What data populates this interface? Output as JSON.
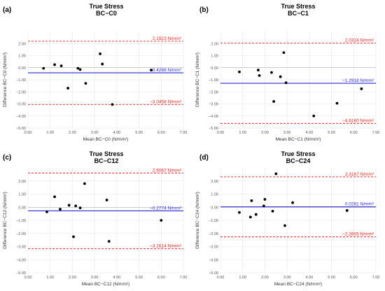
{
  "chart_data": [
    {
      "type": "scatter",
      "panel": "(a)",
      "title": "True Stress",
      "subtitle": "BC−C0",
      "xlabel": "Mean BC−C0 (N/mm²)",
      "ylabel": "Difference BC−C0 (N/mm²)",
      "xlim": [
        0,
        7
      ],
      "ylim": [
        -5,
        3
      ],
      "xticks": [
        "0.00",
        "1.00",
        "2.00",
        "3.00",
        "4.00",
        "5.00",
        "6.00",
        "7.00"
      ],
      "yticks": [
        "−5.00",
        "−4.00",
        "−3.00",
        "−2.00",
        "−1.00",
        "0.00",
        "1.00",
        "2.00"
      ],
      "points": [
        [
          0.7,
          -0.05
        ],
        [
          1.2,
          0.25
        ],
        [
          1.5,
          0.15
        ],
        [
          1.8,
          -1.7
        ],
        [
          2.25,
          -0.05
        ],
        [
          2.35,
          -0.15
        ],
        [
          2.6,
          -1.3
        ],
        [
          3.25,
          1.15
        ],
        [
          3.35,
          0.3
        ],
        [
          3.8,
          -3.05
        ],
        [
          5.55,
          -0.2
        ]
      ],
      "lines": [
        {
          "value": 2.1923,
          "label": "2.1923 N/mm²",
          "style": "dashed",
          "color": "#e8231f"
        },
        {
          "value": -0.4268,
          "label": "−0.4268 N/mm²",
          "style": "solid",
          "color": "#2a2ad8"
        },
        {
          "value": -3.0458,
          "label": "−3.0458 N/mm²",
          "style": "dashed",
          "color": "#e8231f"
        }
      ],
      "grid": true
    },
    {
      "type": "scatter",
      "panel": "(b)",
      "title": "True Stress",
      "subtitle": "BC−C1",
      "xlabel": "Mean BC−C1 (N/mm²)",
      "ylabel": "Difference BC−C1 (N/mm²)",
      "xlim": [
        0,
        7
      ],
      "ylim": [
        -5,
        3
      ],
      "xticks": [
        "0.00",
        "1.00",
        "2.00",
        "3.00",
        "4.00",
        "5.00",
        "6.00",
        "7.00"
      ],
      "yticks": [
        "−5.00",
        "−4.00",
        "−3.00",
        "−2.00",
        "−1.00",
        "0.00",
        "1.00",
        "2.00"
      ],
      "points": [
        [
          0.85,
          -0.35
        ],
        [
          1.7,
          -0.2
        ],
        [
          1.75,
          -0.65
        ],
        [
          2.3,
          -0.4
        ],
        [
          2.4,
          -2.8
        ],
        [
          2.7,
          -0.75
        ],
        [
          2.85,
          1.25
        ],
        [
          2.95,
          -1.25
        ],
        [
          4.2,
          -4.0
        ],
        [
          5.25,
          -2.95
        ],
        [
          6.35,
          -1.75
        ]
      ],
      "lines": [
        {
          "value": 2.0324,
          "label": "2.0324 N/mm²",
          "style": "dashed",
          "color": "#e8231f"
        },
        {
          "value": -1.2918,
          "label": "−1.2918 N/mm²",
          "style": "solid",
          "color": "#2a2ad8"
        },
        {
          "value": -4.616,
          "label": "−4.6160 N/mm²",
          "style": "dashed",
          "color": "#e8231f"
        }
      ],
      "grid": true
    },
    {
      "type": "scatter",
      "panel": "(c)",
      "title": "True Stress",
      "subtitle": "BC−C12",
      "xlabel": "Mean BC−C12 (N/mm²)",
      "ylabel": "Difference BC−C12 (N/mm²)",
      "xlim": [
        0,
        7
      ],
      "ylim": [
        -5,
        3
      ],
      "xticks": [
        "0.00",
        "1.00",
        "2.00",
        "3.00",
        "4.00",
        "5.00",
        "6.00",
        "7.00"
      ],
      "yticks": [
        "−5.00",
        "−4.00",
        "−3.00",
        "−2.00",
        "−1.00",
        "0.00",
        "1.00",
        "2.00"
      ],
      "points": [
        [
          0.85,
          -0.35
        ],
        [
          1.2,
          0.8
        ],
        [
          1.45,
          -0.15
        ],
        [
          1.85,
          0.15
        ],
        [
          2.05,
          -2.25
        ],
        [
          2.15,
          0.1
        ],
        [
          2.35,
          -0.05
        ],
        [
          2.55,
          1.8
        ],
        [
          3.55,
          0.55
        ],
        [
          3.65,
          -2.6
        ],
        [
          6.0,
          -1.0
        ]
      ],
      "lines": [
        {
          "value": 2.6067,
          "label": "2.6067 N/mm²",
          "style": "dashed",
          "color": "#e8231f"
        },
        {
          "value": -0.2774,
          "label": "−0.2774 N/mm²",
          "style": "solid",
          "color": "#2a2ad8"
        },
        {
          "value": -3.1614,
          "label": "−3.1614 N/mm²",
          "style": "dashed",
          "color": "#e8231f"
        }
      ],
      "grid": true
    },
    {
      "type": "scatter",
      "panel": "(d)",
      "title": "True Stress",
      "subtitle": "BC−C24",
      "xlabel": "Mean BC−C24 (N/mm²)",
      "ylabel": "Difference BC−C24 (N/mm²)",
      "xlim": [
        0,
        7
      ],
      "ylim": [
        -5,
        3
      ],
      "xticks": [
        "0.00",
        "1.00",
        "2.00",
        "3.00",
        "4.00",
        "5.00",
        "6.00",
        "7.00"
      ],
      "yticks": [
        "−5.00",
        "−4.00",
        "−3.00",
        "−2.00",
        "−1.00",
        "0.00",
        "1.00",
        "2.00"
      ],
      "points": [
        [
          0.85,
          -0.4
        ],
        [
          1.35,
          -0.75
        ],
        [
          1.4,
          0.5
        ],
        [
          1.6,
          -0.55
        ],
        [
          1.95,
          0.1
        ],
        [
          2.0,
          0.6
        ],
        [
          2.35,
          -0.3
        ],
        [
          2.5,
          2.55
        ],
        [
          2.9,
          -1.4
        ],
        [
          3.25,
          0.35
        ],
        [
          5.7,
          -0.25
        ]
      ],
      "lines": [
        {
          "value": 2.3167,
          "label": "2.3167 N/mm²",
          "style": "dashed",
          "color": "#e8231f"
        },
        {
          "value": 0.0281,
          "label": "0.0281 N/mm²",
          "style": "solid",
          "color": "#2a2ad8"
        },
        {
          "value": -2.2605,
          "label": "−2.2605 N/mm²",
          "style": "dashed",
          "color": "#e8231f"
        }
      ],
      "grid": true
    }
  ]
}
